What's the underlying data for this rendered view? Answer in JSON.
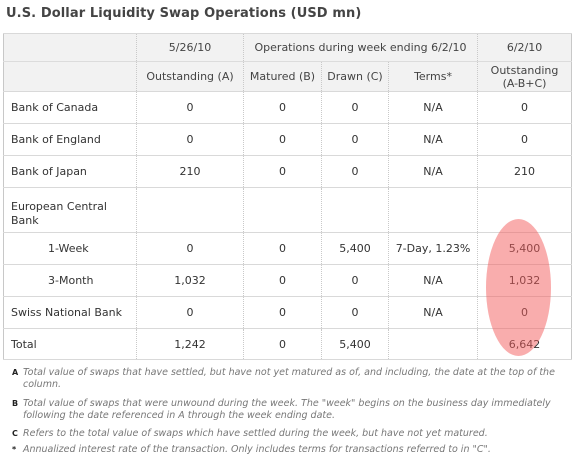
{
  "title": "U.S. Dollar Liquidity Swap Operations (USD mn)",
  "table": {
    "header_row1": {
      "date_a": "5/26/10",
      "week_ops": "Operations during week ending 6/2/10",
      "date_b": "6/2/10"
    },
    "header_row2": {
      "outstanding_a": "Outstanding (A)",
      "matured_b": "Matured (B)",
      "drawn_c": "Drawn (C)",
      "terms": "Terms*",
      "outstanding_total_line1": "Outstanding",
      "outstanding_total_line2": "(A-B+C)"
    },
    "rows": [
      {
        "name": "Bank of Canada",
        "outstanding_a": "0",
        "matured_b": "0",
        "drawn_c": "0",
        "terms": "N/A",
        "outstanding_total": "0"
      },
      {
        "name": "Bank of England",
        "outstanding_a": "0",
        "matured_b": "0",
        "drawn_c": "0",
        "terms": "N/A",
        "outstanding_total": "0"
      },
      {
        "name": "Bank of Japan",
        "outstanding_a": "210",
        "matured_b": "0",
        "drawn_c": "0",
        "terms": "N/A",
        "outstanding_total": "210"
      },
      {
        "name": "European Central Bank"
      },
      {
        "name": "1-Week",
        "outstanding_a": "0",
        "matured_b": "0",
        "drawn_c": "5,400",
        "terms": "7-Day, 1.23%",
        "outstanding_total": "5,400"
      },
      {
        "name": "3-Month",
        "outstanding_a": "1,032",
        "matured_b": "0",
        "drawn_c": "0",
        "terms": "N/A",
        "outstanding_total": "1,032"
      },
      {
        "name": "Swiss National Bank",
        "outstanding_a": "0",
        "matured_b": "0",
        "drawn_c": "0",
        "terms": "N/A",
        "outstanding_total": "0"
      },
      {
        "name": "Total",
        "outstanding_a": "1,242",
        "matured_b": "0",
        "drawn_c": "5,400",
        "terms": "",
        "outstanding_total": "6,642"
      }
    ]
  },
  "highlight_color": "#f35c5c",
  "footnotes": [
    {
      "mark": "A",
      "text": "Total value of swaps that have settled, but have not yet matured as of, and including, the date at the top of the column."
    },
    {
      "mark": "B",
      "text": "Total value of swaps that were unwound during the week. The \"week\" begins on the business day immediately following the date referenced in A through the week ending date."
    },
    {
      "mark": "C",
      "text": "Refers to the total value of swaps which have settled during the week, but have not yet matured."
    },
    {
      "mark": "*",
      "text": "Annualized interest rate of the transaction. Only includes terms for transactions referred to in \"C\"."
    }
  ]
}
